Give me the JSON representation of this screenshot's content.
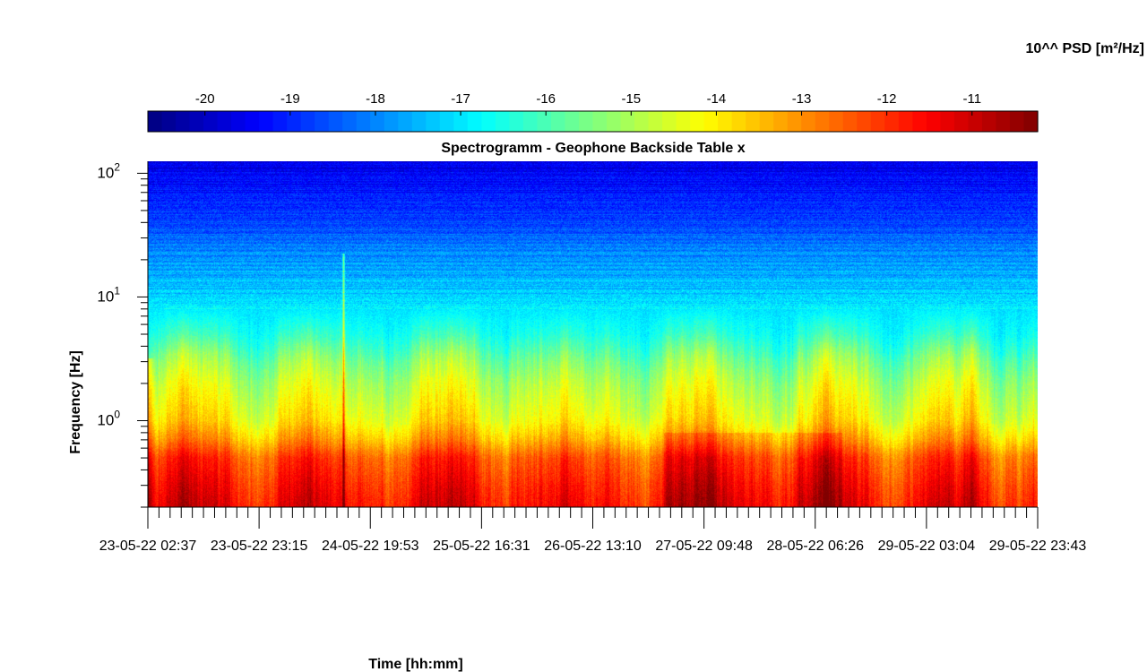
{
  "chart_data": {
    "type": "heatmap",
    "title": "Spectrogramm - Geophone Backside Table x",
    "xlabel": "Time [hh:mm]",
    "ylabel": "Frequency [Hz]",
    "colorbar_label": "10^^ PSD [m²/Hz]",
    "colormap": "jet",
    "y_scale": "log",
    "ylim": [
      0.2,
      125
    ],
    "y_ticks": [
      {
        "value": 1,
        "base": "10",
        "exp": "0"
      },
      {
        "value": 10,
        "base": "10",
        "exp": "1"
      },
      {
        "value": 100,
        "base": "10",
        "exp": "2"
      }
    ],
    "x_tick_labels": [
      "23-05-22  02:37",
      "23-05-22  23:15",
      "24-05-22  19:53",
      "25-05-22  16:31",
      "26-05-22  13:10",
      "27-05-22  09:48",
      "28-05-22  06:26",
      "29-05-22  03:04",
      "29-05-22  23:43"
    ],
    "colorbar_range": [
      -20.67,
      -10.23
    ],
    "colorbar_ticks": [
      -20,
      -19,
      -18,
      -17,
      -16,
      -15,
      -14,
      -13,
      -12,
      -11
    ],
    "colorbar_tick_labels": [
      "-20",
      "-19",
      "-18",
      "-17",
      "-16",
      "-15",
      "-14",
      "-13",
      "-12",
      "-11"
    ],
    "psd_profile": {
      "frequency_hz": [
        0.2,
        0.3,
        0.5,
        0.7,
        1.0,
        2.0,
        3.0,
        5.0,
        8.0,
        12.0,
        20.0,
        30.0,
        50.0,
        80.0,
        125.0
      ],
      "log10_psd": [
        -11.5,
        -11.8,
        -12.3,
        -13.3,
        -14.1,
        -14.8,
        -15.4,
        -16.4,
        -17.0,
        -17.4,
        -17.8,
        -18.3,
        -18.9,
        -19.3,
        -19.6
      ]
    }
  }
}
